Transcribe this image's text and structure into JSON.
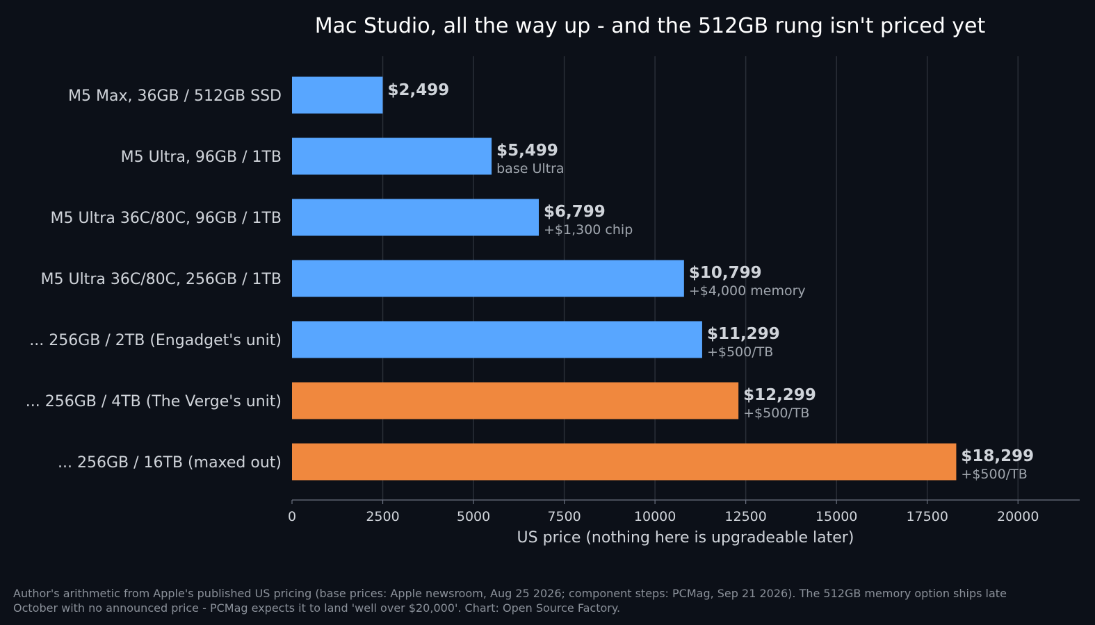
{
  "chart_data": {
    "type": "bar",
    "orientation": "horizontal",
    "title": "Mac Studio, all the way up - and the 512GB rung isn't priced yet",
    "xlabel": "US price (nothing here is upgradeable later)",
    "ylabel": "",
    "xlim": [
      0,
      21700
    ],
    "xticks": [
      0,
      2500,
      5000,
      7500,
      10000,
      12500,
      15000,
      17500,
      20000
    ],
    "grid": "vertical",
    "categories": [
      "M5 Max, 36GB / 512GB SSD",
      "M5 Ultra, 96GB / 1TB",
      "M5 Ultra 36C/80C, 96GB / 1TB",
      "M5 Ultra 36C/80C, 256GB / 1TB",
      "... 256GB / 2TB (Engadget's unit)",
      "... 256GB / 4TB (The Verge's unit)",
      "... 256GB / 16TB (maxed out)"
    ],
    "values": [
      2499,
      5499,
      6799,
      10799,
      11299,
      12299,
      18299
    ],
    "value_labels": [
      "$2,499",
      "$5,499",
      "$6,799",
      "$10,799",
      "$11,299",
      "$12,299",
      "$18,299"
    ],
    "notes": [
      "",
      "base Ultra",
      "+$1,300 chip",
      "+$4,000 memory",
      "+$500/TB",
      "+$500/TB",
      "+$500/TB"
    ],
    "bar_colors": [
      "#58a6ff",
      "#58a6ff",
      "#58a6ff",
      "#58a6ff",
      "#58a6ff",
      "#f0883e",
      "#f0883e"
    ]
  },
  "footnote": {
    "line1": "Author's arithmetic from Apple's published US pricing (base prices: Apple newsroom, Aug 25 2026; component steps: PCMag, Sep 21 2026). The 512GB memory option ships late",
    "line2": "October with no announced price - PCMag expects it to land 'well over $20,000'. Chart: Open Source Factory."
  },
  "colors": {
    "background": "#0c1018",
    "text": "#d0d4da",
    "muted_text": "#a0a6ae",
    "grid": "#2a2f38",
    "axis": "#6b7280"
  }
}
